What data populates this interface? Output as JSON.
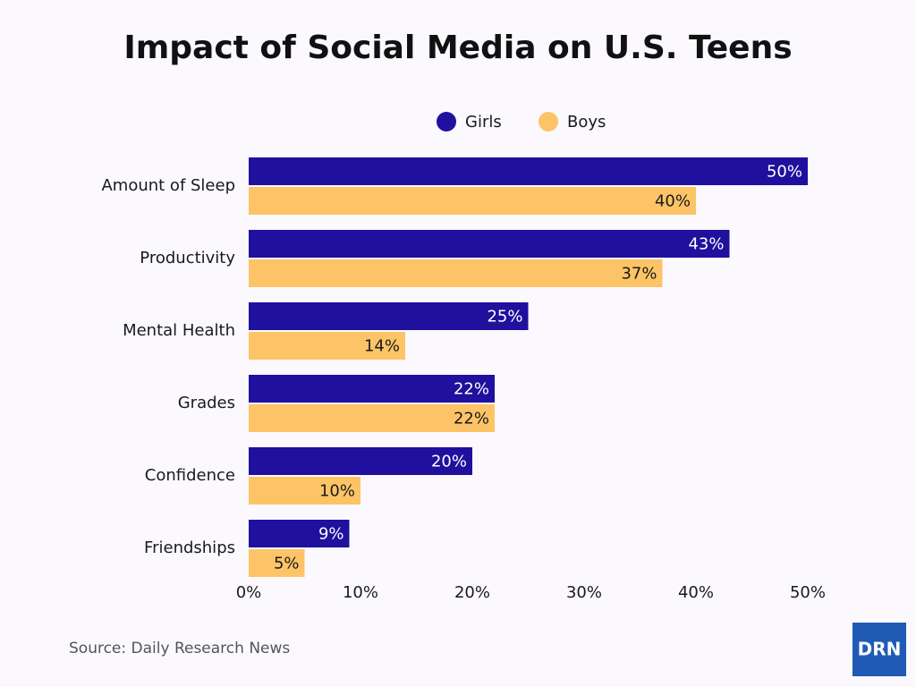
{
  "chart_data": {
    "type": "bar",
    "orientation": "horizontal",
    "title": "Impact of Social Media on U.S. Teens",
    "categories": [
      "Amount of Sleep",
      "Productivity",
      "Mental Health",
      "Grades",
      "Confidence",
      "Friendships"
    ],
    "series": [
      {
        "name": "Girls",
        "color": "#20109e",
        "label_color": "#ffffff",
        "values": [
          50,
          43,
          25,
          22,
          20,
          9
        ],
        "value_labels": [
          "50%",
          "43%",
          "25%",
          "22%",
          "20%",
          "9%"
        ]
      },
      {
        "name": "Boys",
        "color": "#fcc466",
        "label_color": "#1a1a1a",
        "values": [
          40,
          37,
          14,
          22,
          10,
          5
        ],
        "value_labels": [
          "40%",
          "37%",
          "14%",
          "22%",
          "10%",
          "5%"
        ]
      }
    ],
    "xlim": [
      0,
      50
    ],
    "xticks": [
      {
        "value": 0,
        "label": "0%"
      },
      {
        "value": 10,
        "label": "10%"
      },
      {
        "value": 20,
        "label": "20%"
      },
      {
        "value": 30,
        "label": "30%"
      },
      {
        "value": 40,
        "label": "40%"
      },
      {
        "value": 50,
        "label": "50%"
      }
    ],
    "grid": false,
    "legend": "top",
    "source": "Source: Daily Research News"
  },
  "logo": "DRN"
}
